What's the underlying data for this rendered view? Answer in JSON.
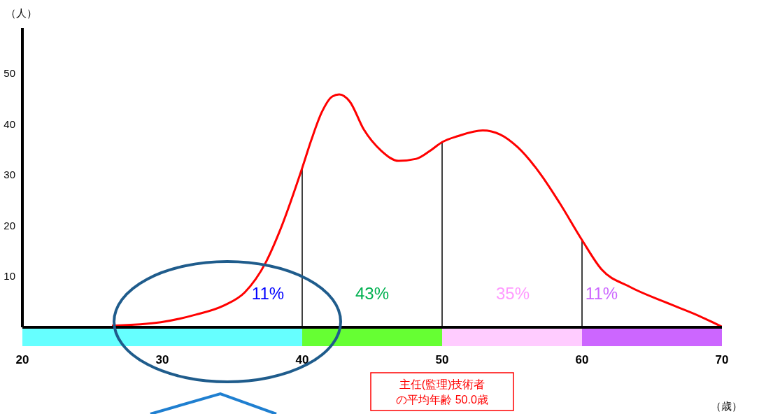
{
  "chart_data": {
    "type": "line",
    "ylabel": "（人）",
    "xlabel": "（歳）",
    "x": [
      26.4,
      29.9,
      32.4,
      34.4,
      35.9,
      37.4,
      38.4,
      40,
      40.65,
      41.4,
      42.15,
      42.65,
      43.4,
      44.4,
      45.65,
      46.9,
      48.15,
      49.15,
      50,
      51.15,
      52.9,
      54.15,
      55.4,
      56.9,
      58.4,
      60,
      61.4,
      63.4,
      65.9,
      68.4,
      70
    ],
    "series": [
      {
        "color": "#ff0000",
        "values": [
          0.3,
          1.0,
          2.5,
          4.3,
          6.9,
          12.8,
          19,
          31.4,
          36.9,
          42.4,
          45.5,
          45.9,
          44.5,
          39,
          34.8,
          32.8,
          33.2,
          34.8,
          36.5,
          37.7,
          38.8,
          38,
          35.5,
          30.7,
          24.5,
          17.2,
          11.4,
          8.0,
          5.0,
          2.2,
          0.1
        ]
      }
    ],
    "xlim": [
      20,
      70
    ],
    "xticks": [
      20,
      30,
      40,
      50,
      60,
      70
    ],
    "ylim": [
      0,
      59
    ],
    "yticks": [
      10,
      20,
      30,
      40,
      50
    ],
    "grid": false,
    "legend": false,
    "marker": "none",
    "line_style": "solid",
    "ref_lines": [
      {
        "axis": "x",
        "value": 40
      },
      {
        "axis": "x",
        "value": 50
      },
      {
        "axis": "x",
        "value": 60
      }
    ],
    "annotations": [
      "11%",
      "43%",
      "35%",
      "11%",
      "主任(監理)技術者の平均年齢 50.0歳"
    ]
  }
}
